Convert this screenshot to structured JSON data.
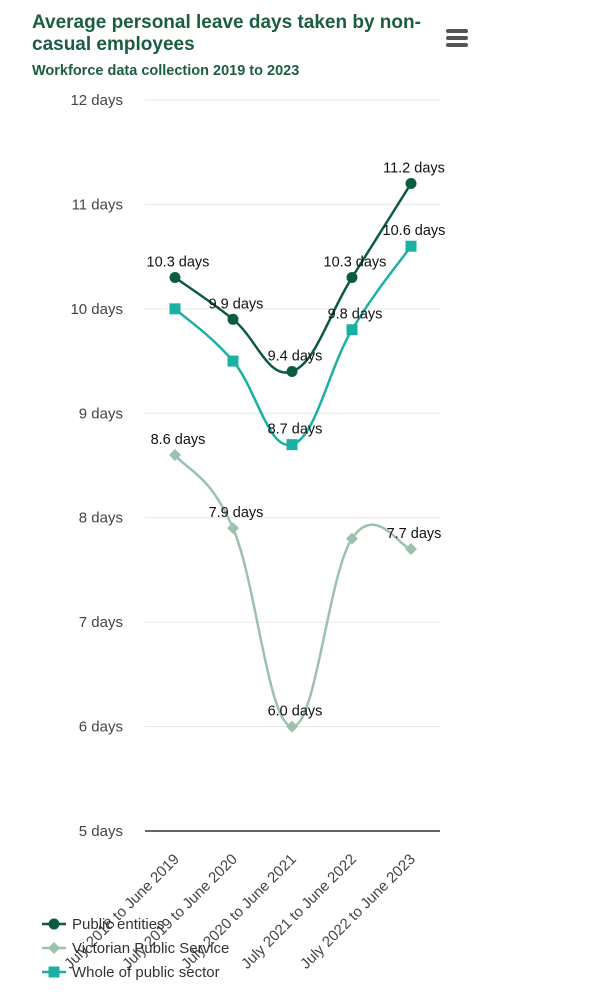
{
  "header": {
    "title": "Average personal leave days taken by non-casual employees",
    "subtitle": "Workforce data collection 2019 to 2023"
  },
  "colors": {
    "public_entities": "#0c5c42",
    "victorian_public_service": "#9cc2ad",
    "whole_of_public_sector": "#1cb0a4",
    "title": "#1b5e3f"
  },
  "icons": {
    "menu": "hamburger-menu-icon"
  },
  "chart_data": {
    "type": "line",
    "title": "Average personal leave days taken by non-casual employees",
    "subtitle": "Workforce data collection 2019 to 2023",
    "categories": [
      "July 2018 to June 2019",
      "July 2019 to June 2020",
      "July 2020 to June 2021",
      "July 2021 to June 2022",
      "July 2022 to June 2023"
    ],
    "ylim": [
      5,
      12
    ],
    "yticks": [
      "5 days",
      "6 days",
      "7 days",
      "8 days",
      "9 days",
      "10 days",
      "11 days",
      "12 days"
    ],
    "grid": true,
    "legend_position": "bottom-left",
    "series": [
      {
        "name": "Public entities",
        "marker": "circle",
        "values": [
          10.3,
          9.9,
          9.4,
          10.3,
          11.2
        ],
        "labels": [
          "10.3 days",
          "9.9 days",
          "9.4 days",
          "10.3 days",
          "11.2 days"
        ]
      },
      {
        "name": "Victorian Public Service",
        "marker": "diamond",
        "values": [
          8.6,
          7.9,
          6.0,
          7.8,
          7.7
        ],
        "labels": [
          "8.6 days",
          "7.9 days",
          "6.0 days",
          "",
          "7.7 days"
        ]
      },
      {
        "name": "Whole of public sector",
        "marker": "square",
        "values": [
          10.0,
          9.5,
          8.7,
          9.8,
          10.6
        ],
        "labels": [
          "",
          "",
          "8.7 days",
          "9.8 days",
          "10.6 days"
        ]
      }
    ]
  }
}
